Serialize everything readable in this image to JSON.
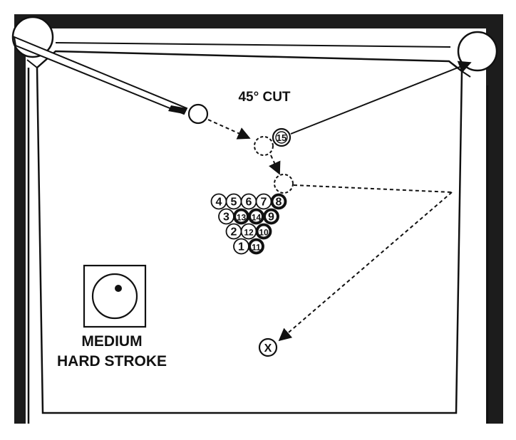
{
  "diagram": {
    "shot_label": "45° CUT",
    "stroke_label_line1": "MEDIUM",
    "stroke_label_line2": "HARD STROKE",
    "target_label": "X",
    "object_ball": "15",
    "rack_rows": [
      [
        "4",
        "5",
        "6",
        "7",
        "8"
      ],
      [
        "3",
        "13",
        "14",
        "9"
      ],
      [
        "2",
        "12",
        "10"
      ],
      [
        "1",
        "11"
      ]
    ],
    "dark_balls": [
      "8",
      "9",
      "10",
      "11",
      "13",
      "14",
      "15"
    ],
    "colors": {
      "ink": "#111111",
      "table": "#ffffff",
      "frame": "#1a1a1a"
    }
  }
}
